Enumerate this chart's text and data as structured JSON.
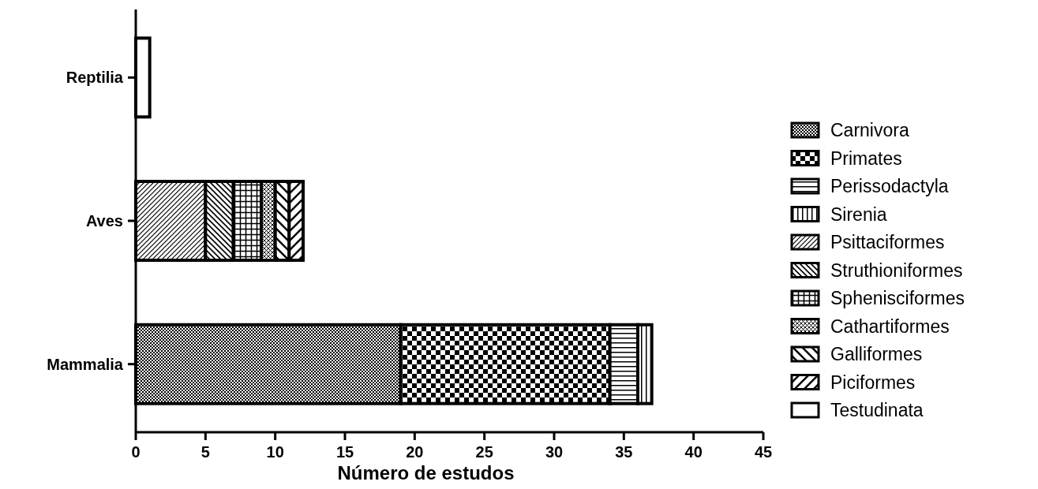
{
  "chart_data": {
    "type": "bar",
    "orientation": "horizontal",
    "stacked": true,
    "xlabel": "Número de estudos",
    "categories": [
      "Reptilia",
      "Aves",
      "Mammalia"
    ],
    "xlim": [
      0,
      45
    ],
    "xticks": [
      0,
      5,
      10,
      15,
      20,
      25,
      30,
      35,
      40,
      45
    ],
    "grid": false,
    "legend": "right",
    "series": [
      {
        "name": "Carnivora",
        "color": "#000000",
        "values": [
          null,
          null,
          19
        ]
      },
      {
        "name": "Primates",
        "color": "#000000",
        "values": [
          null,
          null,
          15
        ]
      },
      {
        "name": "Perissodactyla",
        "color": "#000000",
        "values": [
          null,
          null,
          2
        ]
      },
      {
        "name": "Sirenia",
        "color": "#000000",
        "values": [
          null,
          null,
          1
        ]
      },
      {
        "name": "Psittaciformes",
        "color": "#000000",
        "values": [
          null,
          5,
          null
        ]
      },
      {
        "name": "Struthioniformes",
        "color": "#000000",
        "values": [
          null,
          2,
          null
        ]
      },
      {
        "name": "Sphenisciformes",
        "color": "#000000",
        "values": [
          null,
          2,
          null
        ]
      },
      {
        "name": "Cathartiformes",
        "color": "#000000",
        "values": [
          null,
          1,
          null
        ]
      },
      {
        "name": "Galliformes",
        "color": "#000000",
        "values": [
          null,
          1,
          null
        ]
      },
      {
        "name": "Piciformes",
        "color": "#000000",
        "values": [
          null,
          1,
          null
        ]
      },
      {
        "name": "Testudinata",
        "color": "#000000",
        "values": [
          1,
          null,
          null
        ]
      }
    ]
  }
}
